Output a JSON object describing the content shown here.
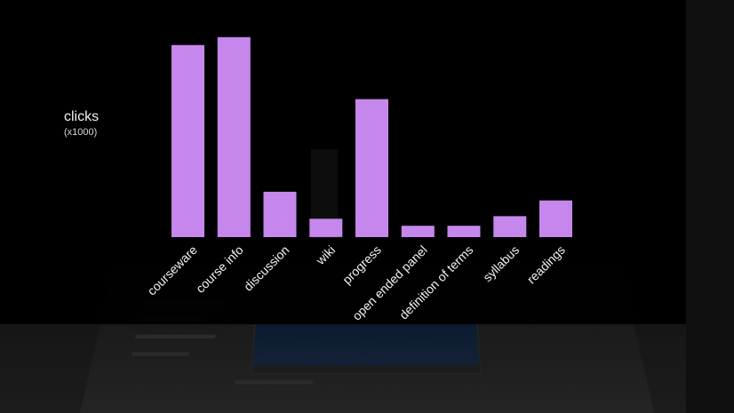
{
  "chart_data": {
    "type": "bar",
    "title": "",
    "xlabel": "",
    "ylabel": "clicks",
    "ylabel_unit": "(x1000)",
    "categories": [
      "courseware",
      "course info",
      "discussion",
      "wiki",
      "progress",
      "open ended panel",
      "definition of terms",
      "syllabus",
      "readings"
    ],
    "values": [
      220,
      229,
      52,
      21,
      158,
      13,
      13,
      24,
      42
    ],
    "ylim": [
      0,
      240
    ],
    "grid": false,
    "legend": "none",
    "bar_color": "#c587ec",
    "text_color": "#f2f2f2",
    "background_color": "#000000"
  }
}
